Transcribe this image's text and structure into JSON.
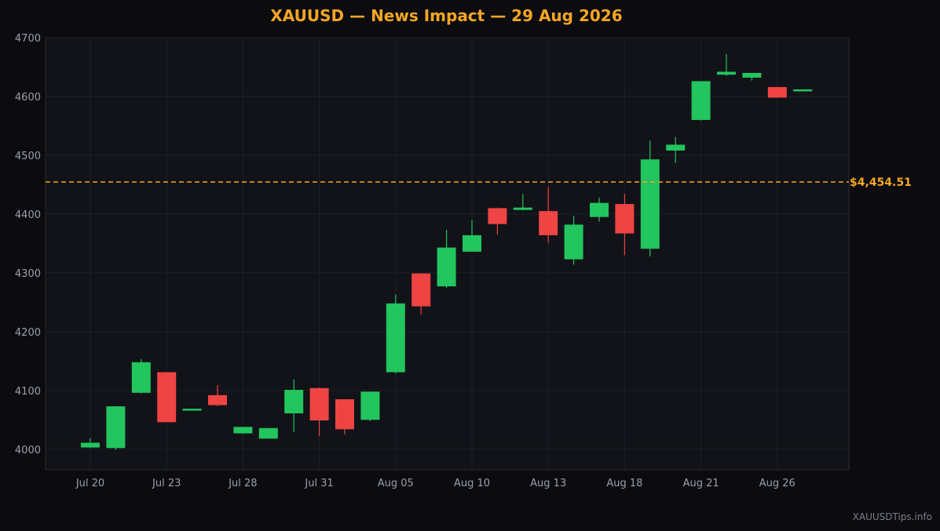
{
  "title": "XAUUSD — News Impact — 29 Aug 2026",
  "watermark": "XAUUSDTips.info",
  "colors": {
    "up": "#22c55e",
    "down": "#ef4444",
    "accent": "#f5a623",
    "background": "#0b0b10",
    "plot_background": "#111318",
    "grid": "#1d2027"
  },
  "chart_data": {
    "type": "candlestick",
    "title": "XAUUSD — News Impact — 29 Aug 2026",
    "ylim": [
      3965,
      4700
    ],
    "y_ticks": [
      4000,
      4100,
      4200,
      4300,
      4400,
      4500,
      4600,
      4700
    ],
    "x_ticks": [
      {
        "label": "Jul 20",
        "index": 0
      },
      {
        "label": "Jul 23",
        "index": 3
      },
      {
        "label": "Jul 28",
        "index": 6
      },
      {
        "label": "Jul 31",
        "index": 9
      },
      {
        "label": "Aug 05",
        "index": 12
      },
      {
        "label": "Aug 10",
        "index": 15
      },
      {
        "label": "Aug 13",
        "index": 18
      },
      {
        "label": "Aug 18",
        "index": 21
      },
      {
        "label": "Aug 21",
        "index": 24
      },
      {
        "label": "Aug 26",
        "index": 27
      }
    ],
    "current_price": {
      "value": 4454.51,
      "label": "$4,454.51"
    },
    "grid": true,
    "candles": [
      {
        "o": 4003,
        "h": 4019,
        "l": 4002,
        "c": 4011
      },
      {
        "o": 4002,
        "h": 4073,
        "l": 3999,
        "c": 4073
      },
      {
        "o": 4096,
        "h": 4153,
        "l": 4095,
        "c": 4148
      },
      {
        "o": 4131,
        "h": 4131,
        "l": 4046,
        "c": 4046
      },
      {
        "o": 4068,
        "h": 4069,
        "l": 4067,
        "c": 4069
      },
      {
        "o": 4092,
        "h": 4109,
        "l": 4073,
        "c": 4075
      },
      {
        "o": 4027,
        "h": 4038,
        "l": 4026,
        "c": 4038
      },
      {
        "o": 4018,
        "h": 4036,
        "l": 4018,
        "c": 4036
      },
      {
        "o": 4061,
        "h": 4119,
        "l": 4029,
        "c": 4101
      },
      {
        "o": 4104,
        "h": 4105,
        "l": 4022,
        "c": 4049
      },
      {
        "o": 4085,
        "h": 4085,
        "l": 4025,
        "c": 4034
      },
      {
        "o": 4050,
        "h": 4098,
        "l": 4048,
        "c": 4098
      },
      {
        "o": 4131,
        "h": 4263,
        "l": 4129,
        "c": 4248
      },
      {
        "o": 4299,
        "h": 4299,
        "l": 4229,
        "c": 4243
      },
      {
        "o": 4277,
        "h": 4373,
        "l": 4274,
        "c": 4343
      },
      {
        "o": 4336,
        "h": 4390,
        "l": 4336,
        "c": 4364
      },
      {
        "o": 4410,
        "h": 4411,
        "l": 4365,
        "c": 4383
      },
      {
        "o": 4407,
        "h": 4434,
        "l": 4406,
        "c": 4411
      },
      {
        "o": 4405,
        "h": 4446,
        "l": 4351,
        "c": 4364
      },
      {
        "o": 4323,
        "h": 4397,
        "l": 4314,
        "c": 4382
      },
      {
        "o": 4395,
        "h": 4428,
        "l": 4387,
        "c": 4419
      },
      {
        "o": 4417,
        "h": 4434,
        "l": 4330,
        "c": 4367
      },
      {
        "o": 4341,
        "h": 4525,
        "l": 4328,
        "c": 4493
      },
      {
        "o": 4508,
        "h": 4531,
        "l": 4487,
        "c": 4518
      },
      {
        "o": 4560,
        "h": 4626,
        "l": 4559,
        "c": 4626
      },
      {
        "o": 4637,
        "h": 4672,
        "l": 4635,
        "c": 4642
      },
      {
        "o": 4632,
        "h": 4640,
        "l": 4627,
        "c": 4640
      },
      {
        "o": 4616,
        "h": 4616,
        "l": 4598,
        "c": 4598
      },
      {
        "o": 4610,
        "h": 4612,
        "l": 4609,
        "c": 4612
      }
    ]
  }
}
